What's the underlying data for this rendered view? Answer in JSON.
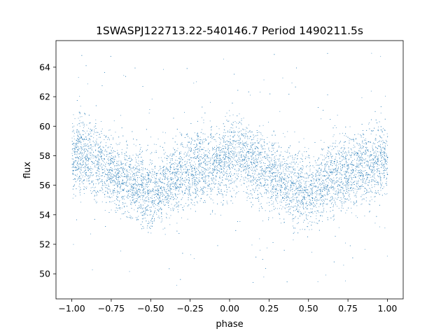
{
  "chart_data": {
    "type": "scatter",
    "title": "1SWASPJ122713.22-540146.7 Period 1490211.5s",
    "xlabel": "phase",
    "ylabel": "flux",
    "xlim": [
      -1.1,
      1.1
    ],
    "ylim": [
      48.3,
      65.8
    ],
    "xticks": [
      -1.0,
      -0.75,
      -0.5,
      -0.25,
      0.0,
      0.25,
      0.5,
      0.75,
      1.0
    ],
    "xtick_labels": [
      "−1.00",
      "−0.75",
      "−0.50",
      "−0.25",
      "0.00",
      "0.25",
      "0.50",
      "0.75",
      "1.00"
    ],
    "yticks": [
      50,
      52,
      54,
      56,
      58,
      60,
      62,
      64
    ],
    "ytick_labels": [
      "50",
      "52",
      "54",
      "56",
      "58",
      "60",
      "62",
      "64"
    ],
    "grid": false,
    "legend": "none",
    "marker_color": "#1f77b4",
    "series": [
      {
        "name": "",
        "phase_range": [
          -1.0,
          1.0
        ],
        "repeats_every_phase": 1.0,
        "trend_phase": [
          0.0,
          0.05,
          0.1,
          0.15,
          0.2,
          0.25,
          0.3,
          0.35,
          0.4,
          0.45,
          0.5,
          0.55,
          0.6,
          0.65,
          0.7,
          0.75,
          0.8,
          0.85,
          0.9,
          0.95,
          1.0
        ],
        "trend_flux": [
          57.9,
          58.2,
          58.0,
          57.5,
          57.2,
          56.9,
          56.6,
          56.3,
          55.9,
          55.8,
          55.6,
          55.9,
          56.2,
          56.5,
          56.9,
          57.1,
          57.2,
          57.3,
          57.4,
          57.6,
          57.9
        ],
        "scatter_band": [
          55.0,
          60.5
        ],
        "outlier_range": [
          49.2,
          65.0
        ]
      }
    ]
  }
}
